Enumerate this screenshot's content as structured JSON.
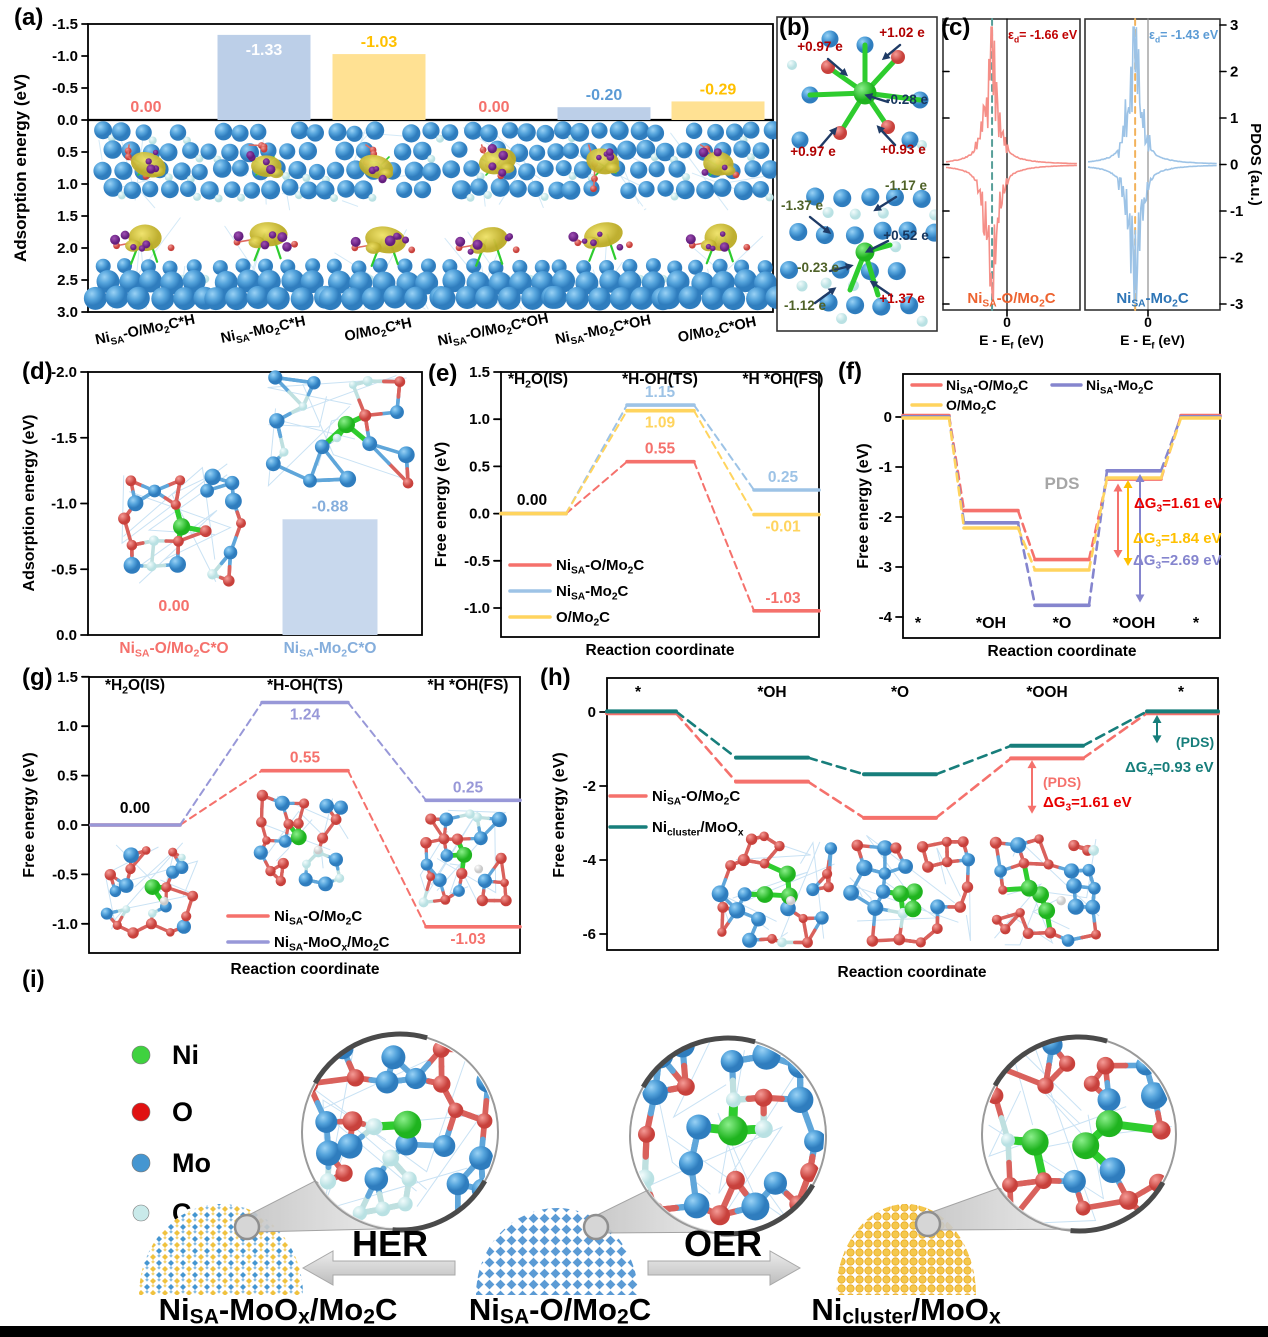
{
  "figure": {
    "panel_labels": {
      "a": "(a)",
      "b": "(b)",
      "c": "(c)",
      "d": "(d)",
      "e": "(e)",
      "f": "(f)",
      "g": "(g)",
      "h": "(h)",
      "i": "(i)"
    }
  },
  "chart_data": [
    {
      "id": "a",
      "type": "bar",
      "title": "",
      "ylabel": "Adsorption energy (eV)",
      "ylim": [
        -1.5,
        3.0
      ],
      "yticks": [
        -1.5,
        -1.0,
        -0.5,
        0.0,
        0.5,
        1.0,
        1.5,
        2.0,
        2.5,
        3.0
      ],
      "categories": [
        "Ni~SA~-O/Mo~2~C*H",
        "Ni~SA~-Mo~2~C*H",
        "O/Mo~2~C*H",
        "Ni~SA~-O/Mo~2~C*OH",
        "Ni~SA~-Mo~2~C*OH",
        "O/Mo~2~C*OH"
      ],
      "values": [
        0.0,
        -1.33,
        -1.03,
        0.0,
        -0.2,
        -0.29
      ],
      "value_labels": [
        "0.00",
        "-1.33",
        "-1.03",
        "0.00",
        "-0.20",
        "-0.29"
      ],
      "bar_colors": [
        "none",
        "#BCCFE8",
        "#FFE193",
        "none",
        "#BCCFE8",
        "#FFE193"
      ],
      "value_label_colors": [
        "#F5716C",
        "#FFFFFF",
        "#FFC000",
        "#F5716C",
        "#5B9BD5",
        "#FFC000"
      ]
    },
    {
      "id": "c",
      "type": "line",
      "title": "",
      "ylabel": "PDOS (a.u.)",
      "yticks": [
        3,
        2,
        1,
        0,
        -1,
        -2,
        -3
      ],
      "xlabel": "E - E~f~ (eV)",
      "x_zero_label": "0",
      "subplots": [
        {
          "name": "Ni~SA~-O/Mo~2~C",
          "name_color": "#ED6330",
          "ed_text": "ε~d~= -1.66 eV",
          "ed_value": -1.66,
          "ed_text_color": "#C00000",
          "curve_color": "#F58F88",
          "ed_line_color": "#579E99"
        },
        {
          "name": "Ni~SA~-Mo~2~C",
          "name_color": "#2E75B6",
          "ed_text": "ε~d~= -1.43 eV",
          "ed_value": -1.43,
          "ed_text_color": "#5B9BD5",
          "curve_color": "#9DC3E6",
          "ed_line_color": "#F2B25C"
        }
      ]
    },
    {
      "id": "d",
      "type": "bar",
      "title": "",
      "ylabel": "Adsorption energy (eV)",
      "ylim": [
        -2.0,
        0.0
      ],
      "yticks": [
        -2.0,
        -1.5,
        -1.0,
        -0.5,
        0.0
      ],
      "categories": [
        "Ni~SA~-O/Mo~2~C*O",
        "Ni~SA~-Mo~2~C*O"
      ],
      "values": [
        0.0,
        -0.88
      ],
      "value_labels": [
        "0.00",
        "-0.88"
      ],
      "bar_colors": [
        "none",
        "#C8D8ED"
      ],
      "value_label_colors": [
        "#F5716C",
        "#85AEDC"
      ],
      "category_colors": [
        "#F5716C",
        "#85AEDC"
      ]
    },
    {
      "id": "e",
      "type": "line",
      "title": "",
      "xlabel": "Reaction coordinate",
      "ylabel": "Free energy (eV)",
      "yticks": [
        1.5,
        1.0,
        0.5,
        0.0,
        -0.5,
        -1.0
      ],
      "stages": [
        "*H~2~O(IS)",
        "*H-OH(TS)",
        "*H *OH(FS)"
      ],
      "initial_label": "0.00",
      "series": [
        {
          "name": "Ni~SA~-O/Mo~2~C",
          "color": "#F5716C",
          "values": [
            0.0,
            0.55,
            -1.03
          ],
          "labels": [
            "",
            "0.55",
            "-1.03"
          ]
        },
        {
          "name": "Ni~SA~-Mo~2~C",
          "color": "#9DC3E6",
          "values": [
            0.0,
            1.15,
            0.25
          ],
          "labels": [
            "",
            "1.15",
            "0.25"
          ]
        },
        {
          "name": "O/Mo~2~C",
          "color": "#FFD45E",
          "values": [
            0.0,
            1.09,
            -0.01
          ],
          "labels": [
            "",
            "1.09",
            "-0.01"
          ]
        }
      ]
    },
    {
      "id": "f",
      "type": "line",
      "title": "",
      "xlabel": "Reaction coordinate",
      "ylabel": "Free energy (eV)",
      "yticks": [
        0,
        -1,
        -2,
        -3,
        -4
      ],
      "stages": [
        "*",
        "*OH",
        "*O",
        "*OOH",
        "*"
      ],
      "pds_label": "PDS",
      "series": [
        {
          "name": "Ni~SA~-O/Mo~2~C",
          "color": "#F5716C",
          "values": [
            0,
            -1.9,
            -2.88,
            -1.27,
            0
          ]
        },
        {
          "name": "Ni~SA~-Mo~2~C",
          "color": "#8585CE",
          "values": [
            0,
            -2.12,
            -3.77,
            -1.08,
            0
          ]
        },
        {
          "name": "O/Mo~2~C",
          "color": "#FFD45E",
          "values": [
            0,
            -2.2,
            -3.04,
            -1.2,
            0
          ]
        }
      ],
      "dg_labels": [
        {
          "text": "ΔG~3~=1.61 eV",
          "color": "#E80000"
        },
        {
          "text": "ΔG~3~=1.84 eV",
          "color": "#FFC000"
        },
        {
          "text": "ΔG~3~=2.69 eV",
          "color": "#8585CE"
        }
      ]
    },
    {
      "id": "g",
      "type": "line",
      "title": "",
      "xlabel": "Reaction coordinate",
      "ylabel": "Free energy (eV)",
      "yticks": [
        1.5,
        1.0,
        0.5,
        0.0,
        -0.5,
        -1.0
      ],
      "stages": [
        "*H~2~O(IS)",
        "*H-OH(TS)",
        "*H *OH(FS)"
      ],
      "initial_label": "0.00",
      "series": [
        {
          "name": "Ni~SA~-O/Mo~2~C",
          "color": "#F5716C",
          "values": [
            0.0,
            0.55,
            -1.03
          ],
          "labels": [
            "",
            "0.55",
            "-1.03"
          ]
        },
        {
          "name": "Ni~SA~-MoO~x~/Mo~2~C",
          "color": "#9898D8",
          "values": [
            0.0,
            1.24,
            0.25
          ],
          "labels": [
            "",
            "1.24",
            "0.25"
          ]
        }
      ]
    },
    {
      "id": "h",
      "type": "line",
      "title": "",
      "xlabel": "Reaction coordinate",
      "ylabel": "Free energy (eV)",
      "yticks": [
        0,
        -2,
        -4,
        -6
      ],
      "stages": [
        "*",
        "*OH",
        "*O",
        "*OOH",
        "*"
      ],
      "series": [
        {
          "name": "Ni~SA~-O/Mo~2~C",
          "color": "#F5716C",
          "values": [
            0,
            -1.85,
            -2.83,
            -1.22,
            0
          ]
        },
        {
          "name": "Ni~cluster~/MoO~x~",
          "color": "#177E7B",
          "values": [
            0,
            -1.25,
            -1.7,
            -0.93,
            0
          ]
        }
      ],
      "annotations": {
        "teal_pds": "(PDS)",
        "teal_dg": "ΔG~4~=0.93 eV",
        "red_pds": "(PDS)",
        "red_dg": "ΔG~3~=1.61 eV"
      }
    }
  ],
  "panel_b": {
    "charges": [
      {
        "text": "+0.97 e",
        "color": "#B00000"
      },
      {
        "text": "+1.02 e",
        "color": "#B00000"
      },
      {
        "text": "-0.28 e",
        "color": "#17365D"
      },
      {
        "text": "+0.97 e",
        "color": "#B00000"
      },
      {
        "text": "+0.93 e",
        "color": "#B00000"
      },
      {
        "text": "-1.17 e",
        "color": "#4F6228"
      },
      {
        "text": "-1.37 e",
        "color": "#4F6228"
      },
      {
        "text": "+0.52 e",
        "color": "#17365D"
      },
      {
        "text": "-0.23 e",
        "color": "#4F6228"
      },
      {
        "text": "-1.12 e",
        "color": "#4F6228"
      },
      {
        "text": "+1.37 e",
        "color": "#C00000"
      }
    ]
  },
  "panel_i": {
    "atom_legend": [
      {
        "label": "Ni",
        "color": "#3FD23F"
      },
      {
        "label": "O",
        "color": "#E01212"
      },
      {
        "label": "Mo",
        "color": "#4596D1"
      },
      {
        "label": "C",
        "color": "#C9EAEA"
      }
    ],
    "left_arrow_label": "HER",
    "right_arrow_label": "OER",
    "structures": [
      {
        "label": "Ni~SA~-MoO~x~/Mo~2~C"
      },
      {
        "label": "Ni~SA~-O/Mo~2~C"
      },
      {
        "label": "Ni~cluster~/MoO~x~"
      }
    ]
  }
}
